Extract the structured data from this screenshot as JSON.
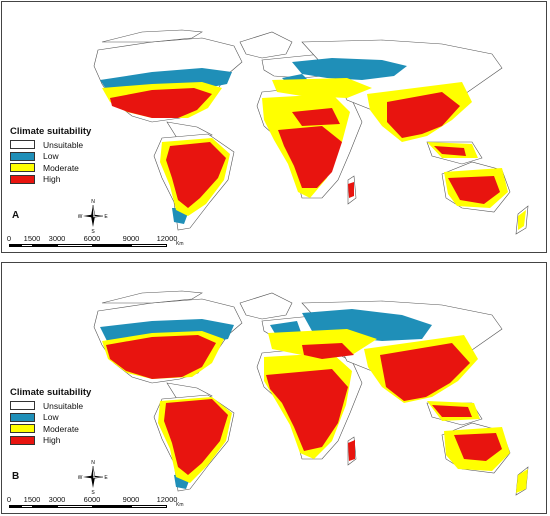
{
  "legend": {
    "title": "Climate suitability",
    "items": [
      {
        "label": "Unsuitable",
        "color": "#ffffff"
      },
      {
        "label": "Low",
        "color": "#1f8fb8"
      },
      {
        "label": "Moderate",
        "color": "#ffff00"
      },
      {
        "label": "High",
        "color": "#e8140f"
      }
    ]
  },
  "panels": [
    {
      "letter": "A"
    },
    {
      "letter": "B"
    }
  ],
  "compass": {
    "north": "N",
    "south": "S",
    "east": "E",
    "west": "W"
  },
  "scalebar": {
    "ticks": [
      "0",
      "1500",
      "3000",
      "6000",
      "9000",
      "12000"
    ],
    "unit": "Km"
  },
  "colors": {
    "land_outline": "#555555",
    "unsuitable": "#ffffff",
    "low": "#1f8fb8",
    "moderate": "#ffff00",
    "high": "#e8140f"
  }
}
